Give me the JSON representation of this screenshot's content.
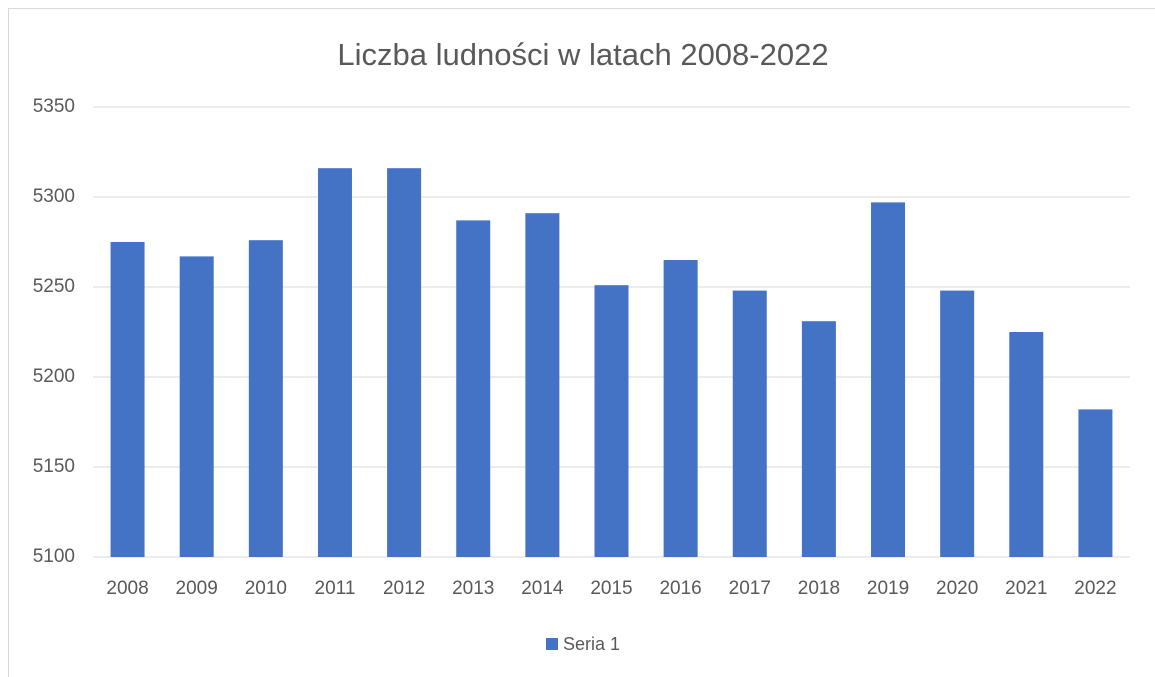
{
  "chart_data": {
    "type": "bar",
    "title": "Liczba ludności w latach 2008-2022",
    "categories": [
      "2008",
      "2009",
      "2010",
      "2011",
      "2012",
      "2013",
      "2014",
      "2015",
      "2016",
      "2017",
      "2018",
      "2019",
      "2020",
      "2021",
      "2022"
    ],
    "series": [
      {
        "name": "Seria 1",
        "color": "#4472c4",
        "values": [
          5275,
          5267,
          5276,
          5316,
          5316,
          5287,
          5291,
          5251,
          5265,
          5248,
          5231,
          5297,
          5248,
          5225,
          5182
        ]
      }
    ],
    "ylim": [
      5100,
      5350
    ],
    "yticks": [
      5100,
      5150,
      5200,
      5250,
      5300,
      5350
    ],
    "grid": true,
    "legend": "bottom"
  }
}
